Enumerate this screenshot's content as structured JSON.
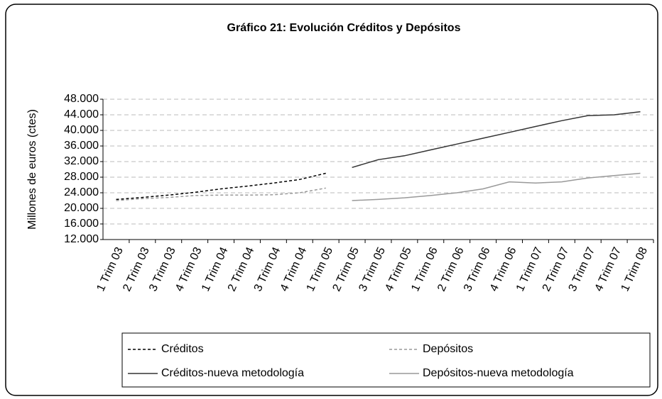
{
  "chart_data": {
    "type": "line",
    "title": "Gráfico 21: Evolución Créditos y Depósitos",
    "y_label": "Millones de euros (ctes)",
    "categories": [
      "1 Trim 03",
      "2 Trim 03",
      "3 Trim 03",
      "4 Trim 03",
      "1 Trim 04",
      "2 Trim 04",
      "3 Trim 04",
      "4 Trim 04",
      "1 Trim 05",
      "2 Trim 05",
      "3 Trim 05",
      "4 Trim 05",
      "1 Trim 06",
      "2 Trim 06",
      "3 Trim 06",
      "4 Trim 06",
      "1 Trim 07",
      "2 Trim 07",
      "3 Trim 07",
      "4 Trim 07",
      "1 Trim 08"
    ],
    "series": [
      {
        "name": "Créditos",
        "color": "#000000",
        "dash": "dashed",
        "values": [
          22300,
          22800,
          23400,
          24100,
          25000,
          25700,
          26500,
          27400,
          29000,
          null,
          null,
          null,
          null,
          null,
          null,
          null,
          null,
          null,
          null,
          null,
          null
        ]
      },
      {
        "name": "Depósitos",
        "color": "#999999",
        "dash": "dashed",
        "values": [
          22000,
          22500,
          22800,
          23300,
          23400,
          23400,
          23500,
          24000,
          25200,
          null,
          null,
          null,
          null,
          null,
          null,
          null,
          null,
          null,
          null,
          null,
          null
        ]
      },
      {
        "name": "Créditos-nueva metodología",
        "color": "#333333",
        "dash": "solid",
        "values": [
          null,
          null,
          null,
          null,
          null,
          null,
          null,
          null,
          null,
          30500,
          32500,
          33500,
          35000,
          36500,
          38000,
          39500,
          41000,
          42500,
          43800,
          44000,
          44800
        ]
      },
      {
        "name": "Depósitos-nueva metodología",
        "color": "#999999",
        "dash": "solid",
        "values": [
          null,
          null,
          null,
          null,
          null,
          null,
          null,
          null,
          null,
          22000,
          22300,
          22700,
          23300,
          24000,
          25000,
          26800,
          26500,
          26800,
          27800,
          28400,
          29000
        ]
      }
    ],
    "ylim": [
      12000,
      48000
    ],
    "yticks": [
      {
        "value": 12000,
        "label": "12.000"
      },
      {
        "value": 16000,
        "label": "16.000"
      },
      {
        "value": 20000,
        "label": "20.000"
      },
      {
        "value": 24000,
        "label": "24.000"
      },
      {
        "value": 28000,
        "label": "28.000"
      },
      {
        "value": 32000,
        "label": "32.000"
      },
      {
        "value": 36000,
        "label": "36.000"
      },
      {
        "value": 40000,
        "label": "40.000"
      },
      {
        "value": 44000,
        "label": "44.000"
      },
      {
        "value": 48000,
        "label": "48.000"
      }
    ],
    "grid": true
  }
}
